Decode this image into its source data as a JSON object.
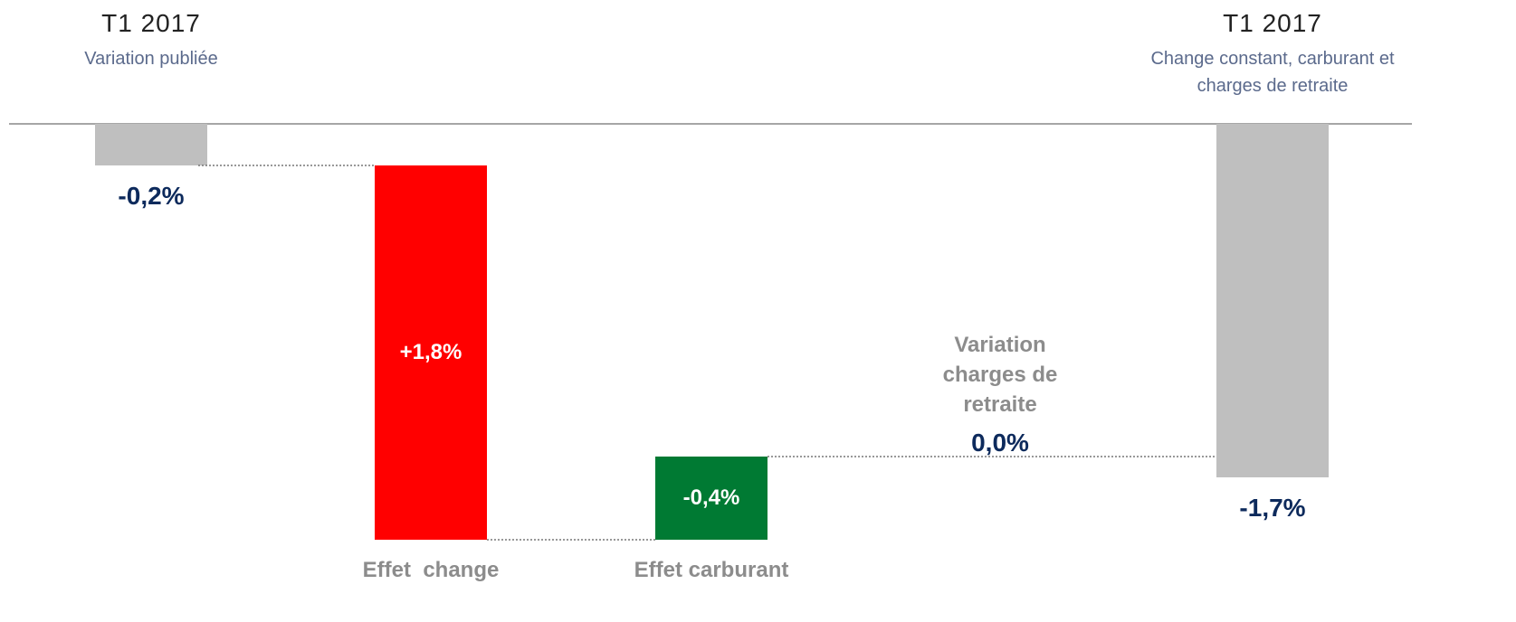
{
  "chart_data": {
    "type": "waterfall",
    "categories": [
      "T1 2017",
      "Effet  change",
      "Effet carburant",
      "Variation charges de retraite",
      "T1 2017"
    ],
    "subtitles": [
      "Variation publiée",
      null,
      null,
      null,
      "Change constant, carburant et charges de retraite"
    ],
    "measures": [
      "total",
      "relative",
      "relative",
      "relative",
      "total"
    ],
    "values": [
      -0.2,
      1.8,
      -0.4,
      0.0,
      -1.7
    ],
    "value_labels": [
      "-0,2%",
      "+1,8%",
      "-0,4%",
      "0,0%",
      "-1,7%"
    ],
    "colors": [
      "#bfbfbf",
      "#ff0000",
      "#007a33",
      "#bfbfbf",
      "#bfbfbf"
    ],
    "ylim": [
      -2.1,
      0
    ]
  }
}
